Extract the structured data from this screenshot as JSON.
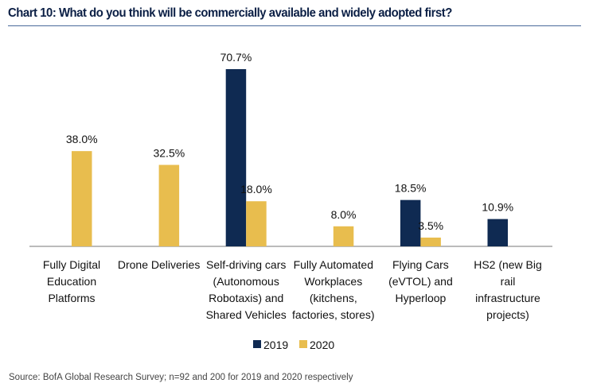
{
  "chart_data": {
    "type": "bar",
    "title": "Chart 10: What do you think will be commercially available and widely adopted first?",
    "categories": [
      [
        "Fully Digital",
        "Education",
        "Platforms"
      ],
      [
        "Drone Deliveries"
      ],
      [
        "Self-driving cars",
        "(Autonomous",
        "Robotaxis) and",
        "Shared Vehicles"
      ],
      [
        "Fully Automated",
        "Workplaces",
        "(kitchens,",
        "factories, stores)"
      ],
      [
        "Flying Cars",
        "(eVTOL) and",
        "Hyperloop"
      ],
      [
        "HS2 (new Big",
        "rail",
        "infrastructure",
        "projects)"
      ]
    ],
    "series": [
      {
        "name": "2019",
        "color": "#0f2a52",
        "values": [
          null,
          null,
          70.7,
          null,
          18.5,
          10.9
        ],
        "labels": [
          "",
          "",
          "70.7%",
          "",
          "18.5%",
          "10.9%"
        ]
      },
      {
        "name": "2020",
        "color": "#e8bd4e",
        "values": [
          38.0,
          32.5,
          18.0,
          8.0,
          3.5,
          null
        ],
        "labels": [
          "38.0%",
          "32.5%",
          "18.0%",
          "8.0%",
          "3.5%",
          ""
        ]
      }
    ],
    "ylim": [
      0,
      75
    ],
    "grid": false,
    "legend": "bottom",
    "source": "Source: BofA Global Research Survey; n=92 and 200 for 2019 and 2020 respectively"
  }
}
